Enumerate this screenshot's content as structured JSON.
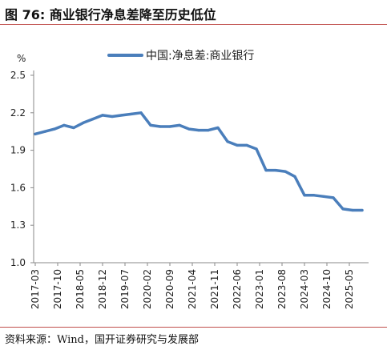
{
  "header": {
    "title": "图 76:  商业银行净息差降至历史低位"
  },
  "footer": {
    "source": "资料来源：Wind，国开证券研究与发展部"
  },
  "colors": {
    "accent_rule": "#c0504d",
    "series_line": "#4a7ebb",
    "axis": "#888888"
  },
  "chart_data": {
    "type": "line",
    "unit_label": "%",
    "ylim": [
      1.0,
      2.5
    ],
    "yticks": [
      "1.0",
      "1.3",
      "1.6",
      "1.9",
      "2.2",
      "2.5"
    ],
    "ytick_values": [
      1.0,
      1.3,
      1.6,
      1.9,
      2.2,
      2.5
    ],
    "xticks": [
      "2017-03",
      "2017-10",
      "2018-05",
      "2018-12",
      "2019-07",
      "2020-02",
      "2020-09",
      "2021-04",
      "2021-11",
      "2022-06",
      "2023-01",
      "2023-08",
      "2024-03",
      "2024-10",
      "2025-05"
    ],
    "grid": false,
    "legend_position": "top-center",
    "series": [
      {
        "name": "中国:净息差:商业银行",
        "x": [
          "2017-03",
          "2017-06",
          "2017-09",
          "2017-12",
          "2018-03",
          "2018-06",
          "2018-09",
          "2018-12",
          "2019-03",
          "2019-06",
          "2019-09",
          "2019-12",
          "2020-03",
          "2020-06",
          "2020-09",
          "2020-12",
          "2021-03",
          "2021-06",
          "2021-09",
          "2021-12",
          "2022-03",
          "2022-06",
          "2022-09",
          "2022-12",
          "2023-03",
          "2023-06",
          "2023-09",
          "2023-12",
          "2024-03",
          "2024-06",
          "2024-09",
          "2024-12",
          "2025-03",
          "2025-06",
          "2025-09"
        ],
        "values": [
          2.03,
          2.05,
          2.07,
          2.1,
          2.08,
          2.12,
          2.15,
          2.18,
          2.17,
          2.18,
          2.19,
          2.2,
          2.1,
          2.09,
          2.09,
          2.1,
          2.07,
          2.06,
          2.06,
          2.08,
          1.97,
          1.94,
          1.94,
          1.91,
          1.74,
          1.74,
          1.73,
          1.69,
          1.54,
          1.54,
          1.53,
          1.52,
          1.43,
          1.42,
          1.42
        ]
      }
    ]
  }
}
